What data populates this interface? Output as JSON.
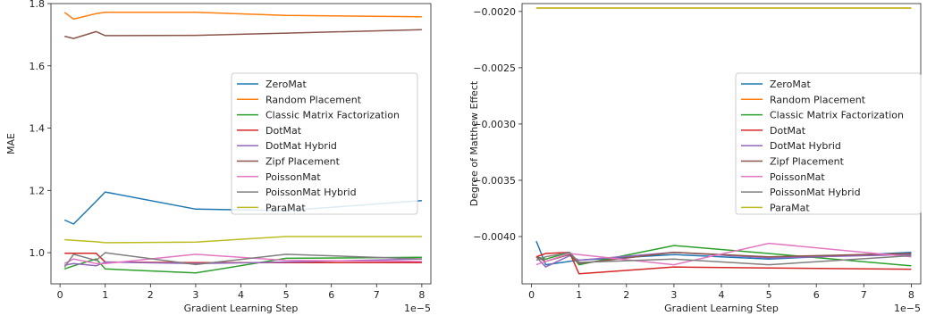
{
  "chart_data": [
    {
      "type": "line",
      "xlabel": "Gradient Learning Step",
      "ylabel": "MAE",
      "x_offset_text": "1e−5",
      "xlim": [
        -0.2,
        8.2
      ],
      "ylim": [
        0.9,
        1.8
      ],
      "xticks": [
        0,
        1,
        2,
        3,
        4,
        5,
        6,
        7,
        8
      ],
      "xtick_labels": [
        "0",
        "1",
        "2",
        "3",
        "4",
        "5",
        "6",
        "7",
        "8"
      ],
      "yticks": [
        1.0,
        1.2,
        1.4,
        1.6,
        1.8
      ],
      "ytick_labels": [
        "1.0",
        "1.2",
        "1.4",
        "1.6",
        "1.8"
      ],
      "grid": false,
      "legend_position": "center-right",
      "x": [
        0.1,
        0.3,
        0.8,
        1,
        3,
        5,
        8
      ],
      "series": [
        {
          "name": "ZeroMat",
          "color": "#1f77b4",
          "values": [
            1.105,
            1.092,
            1.165,
            1.195,
            1.14,
            1.135,
            1.167
          ]
        },
        {
          "name": "Random Placement",
          "color": "#ff7f0e",
          "values": [
            1.772,
            1.75,
            1.768,
            1.772,
            1.772,
            1.762,
            1.758
          ]
        },
        {
          "name": "Classic Matrix Factorization",
          "color": "#2ca02c",
          "values": [
            0.948,
            0.958,
            0.98,
            0.948,
            0.935,
            0.982,
            0.985
          ]
        },
        {
          "name": "DotMat",
          "color": "#d62728",
          "values": [
            0.998,
            0.998,
            0.998,
            0.97,
            0.968,
            0.968,
            0.968
          ]
        },
        {
          "name": "DotMat Hybrid",
          "color": "#9467bd",
          "values": [
            0.96,
            0.965,
            0.958,
            0.97,
            0.965,
            0.97,
            0.98
          ]
        },
        {
          "name": "Zipf Placement",
          "color": "#8c564b",
          "values": [
            1.695,
            1.688,
            1.71,
            1.697,
            1.698,
            1.705,
            1.716
          ]
        },
        {
          "name": "PoissonMat",
          "color": "#e377c2",
          "values": [
            0.965,
            0.98,
            0.965,
            0.965,
            0.995,
            0.975,
            0.972
          ]
        },
        {
          "name": "PoissonMat Hybrid",
          "color": "#7f7f7f",
          "values": [
            0.953,
            0.995,
            0.975,
            1.0,
            0.962,
            0.995,
            0.98
          ]
        },
        {
          "name": "ParaMat",
          "color": "#bcbd22",
          "values": [
            1.042,
            1.04,
            1.035,
            1.032,
            1.034,
            1.052,
            1.052
          ]
        }
      ]
    },
    {
      "type": "line",
      "xlabel": "Gradient Learning Step",
      "ylabel": "Degree of Matthew Effect",
      "x_offset_text": "1e−5",
      "xlim": [
        -0.2,
        8.2
      ],
      "ylim": [
        -0.00442,
        -0.00193
      ],
      "xticks": [
        0,
        1,
        2,
        3,
        4,
        5,
        6,
        7,
        8
      ],
      "xtick_labels": [
        "0",
        "1",
        "2",
        "3",
        "4",
        "5",
        "6",
        "7",
        "8"
      ],
      "yticks": [
        -0.004,
        -0.0035,
        -0.003,
        -0.0025,
        -0.002
      ],
      "ytick_labels": [
        "−0.0040",
        "−0.0035",
        "−0.0030",
        "−0.0025",
        "−0.0020"
      ],
      "grid": false,
      "legend_position": "center-right",
      "x": [
        0.1,
        0.3,
        0.8,
        1,
        3,
        5,
        8
      ],
      "series": [
        {
          "name": "ZeroMat",
          "color": "#1f77b4",
          "values": [
            -0.00404,
            -0.00425,
            -0.00422,
            -0.00421,
            -0.00416,
            -0.0042,
            -0.00414
          ]
        },
        {
          "name": "Random Placement",
          "color": "#ff7f0e",
          "values": [
            -0.00197,
            -0.00197,
            -0.00197,
            -0.00197,
            -0.00197,
            -0.00197,
            -0.00197
          ]
        },
        {
          "name": "Classic Matrix Factorization",
          "color": "#2ca02c",
          "values": [
            -0.00418,
            -0.0042,
            -0.00414,
            -0.00425,
            -0.00408,
            -0.00415,
            -0.00426
          ]
        },
        {
          "name": "DotMat",
          "color": "#d62728",
          "values": [
            -0.00418,
            -0.00415,
            -0.00414,
            -0.00433,
            -0.00427,
            -0.00428,
            -0.00429
          ]
        },
        {
          "name": "DotMat Hybrid",
          "color": "#9467bd",
          "values": [
            -0.00418,
            -0.00427,
            -0.00417,
            -0.00421,
            -0.00414,
            -0.00419,
            -0.00416
          ]
        },
        {
          "name": "Zipf Placement",
          "color": "#8c564b",
          "values": [
            -0.00418,
            -0.00422,
            -0.00416,
            -0.00424,
            -0.00414,
            -0.00418,
            -0.00415
          ]
        },
        {
          "name": "PoissonMat",
          "color": "#e377c2",
          "values": [
            -0.00425,
            -0.00422,
            -0.00415,
            -0.00416,
            -0.00425,
            -0.00406,
            -0.00418
          ]
        },
        {
          "name": "PoissonMat Hybrid",
          "color": "#7f7f7f",
          "values": [
            -0.00421,
            -0.00418,
            -0.00414,
            -0.00423,
            -0.0042,
            -0.00425,
            -0.00417
          ]
        },
        {
          "name": "ParaMat",
          "color": "#bcbd22",
          "values": [
            -0.00197,
            -0.00197,
            -0.00197,
            -0.00197,
            -0.00197,
            -0.00197,
            -0.00197
          ]
        }
      ]
    }
  ]
}
